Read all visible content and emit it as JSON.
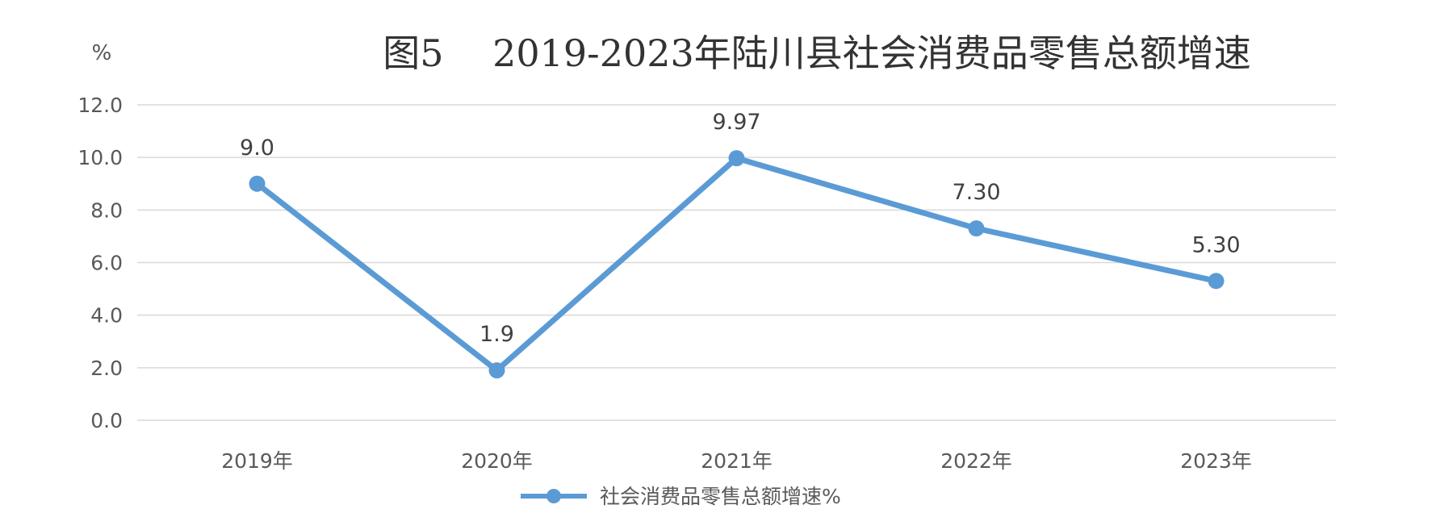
{
  "chart_data": {
    "type": "line",
    "title": "图5　 2019-2023年陆川县社会消费品零售总额增速",
    "unit_label": "%",
    "categories": [
      "2019年",
      "2020年",
      "2021年",
      "2022年",
      "2023年"
    ],
    "series": [
      {
        "name": "社会消费品零售总额增速%",
        "values": [
          9.0,
          1.9,
          9.97,
          7.3,
          5.3
        ],
        "value_labels": [
          "9.0",
          "1.9",
          "9.97",
          "7.30",
          "5.30"
        ],
        "color": "#5b9bd5"
      }
    ],
    "ylim": [
      0,
      12
    ],
    "yticks": [
      "0.0",
      "2.0",
      "4.0",
      "6.0",
      "8.0",
      "10.0",
      "12.0"
    ],
    "xlabel": "",
    "ylabel": "",
    "grid": true,
    "legend_position": "bottom"
  }
}
